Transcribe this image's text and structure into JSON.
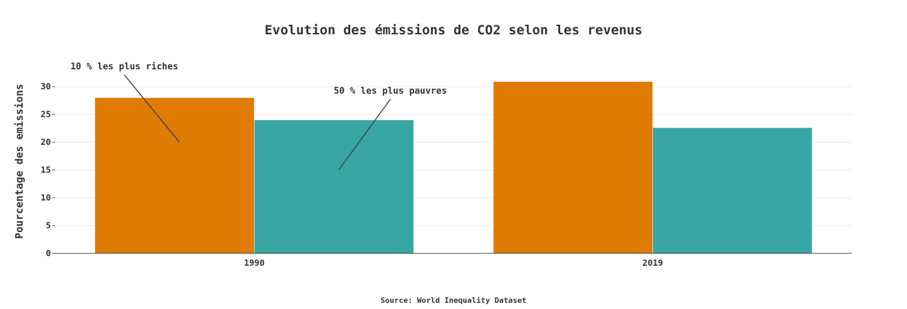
{
  "chart_data": {
    "type": "bar",
    "title": "Evolution des émissions de CO2 selon les revenus",
    "ylabel": "Pourcentage des emissions",
    "xlabel": "",
    "categories": [
      "1990",
      "2019"
    ],
    "series": [
      {
        "name": "10 % les plus riches",
        "color": "#e07b04",
        "values": [
          28.0,
          30.9
        ]
      },
      {
        "name": "50 % les plus pauvres",
        "color": "#38a6a5",
        "values": [
          24.0,
          22.6
        ]
      }
    ],
    "ylim": [
      0,
      31
    ],
    "yticks": [
      0,
      5,
      10,
      15,
      20,
      25,
      30
    ],
    "grid": true,
    "annotations": [
      {
        "text": "10 % les plus riches",
        "category": "1990",
        "series": 0,
        "y": 20
      },
      {
        "text": "50 % les plus pauvres",
        "category": "1990",
        "series": 1,
        "y": 15
      }
    ],
    "source": "Source: World Inequality Dataset"
  }
}
